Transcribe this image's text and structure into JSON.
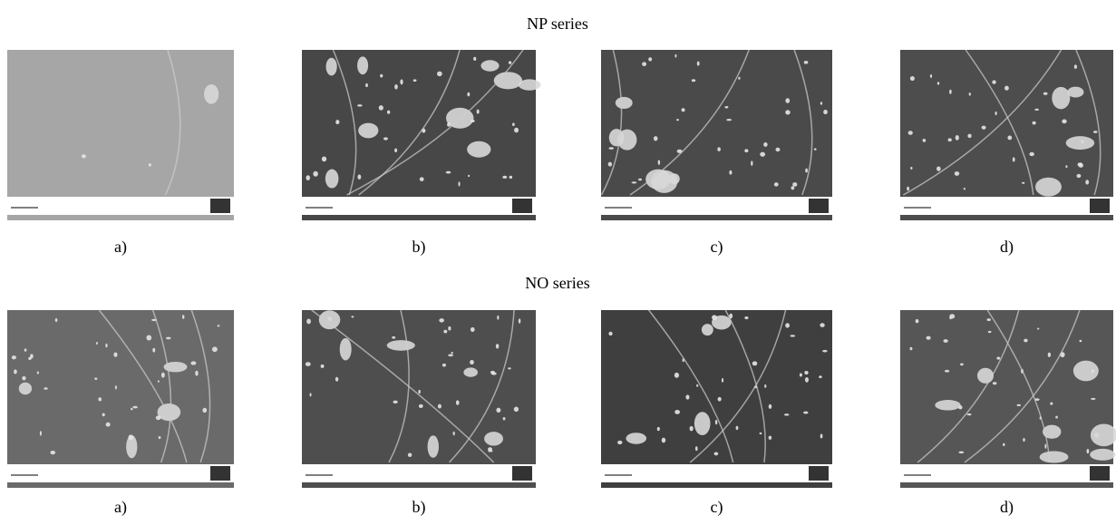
{
  "sections": [
    {
      "title": "NP series",
      "labels": [
        "a)",
        "b)",
        "c)",
        "d)"
      ]
    },
    {
      "title": "NO series",
      "labels": [
        "a)",
        "b)",
        "c)",
        "d)"
      ]
    }
  ]
}
